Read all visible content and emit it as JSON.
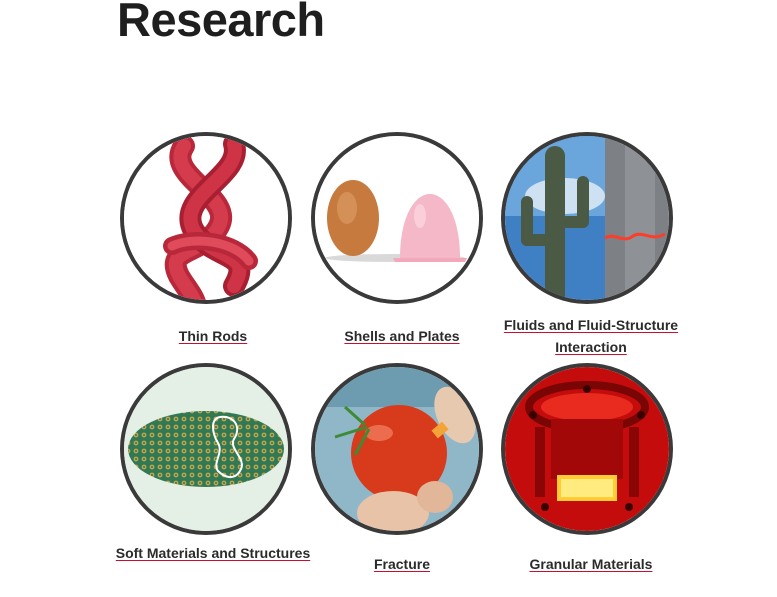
{
  "page": {
    "title": "Research"
  },
  "research": {
    "items": [
      {
        "label": "Thin Rods",
        "icon": "rod-knot-icon"
      },
      {
        "label": "Shells and Plates",
        "icon": "egg-shell-icon"
      },
      {
        "label": "Fluids and Fluid-Structure Interaction",
        "icon": "cactus-icon"
      },
      {
        "label": "Soft Materials and Structures",
        "icon": "ellipsoid-pattern-icon"
      },
      {
        "label": "Fracture",
        "icon": "tomato-icon"
      },
      {
        "label": "Granular Materials",
        "icon": "granular-device-icon"
      }
    ]
  },
  "colors": {
    "title": "#1e1e1e",
    "link_underline": "#c8102e",
    "circle_border": "#3a3a3a"
  }
}
